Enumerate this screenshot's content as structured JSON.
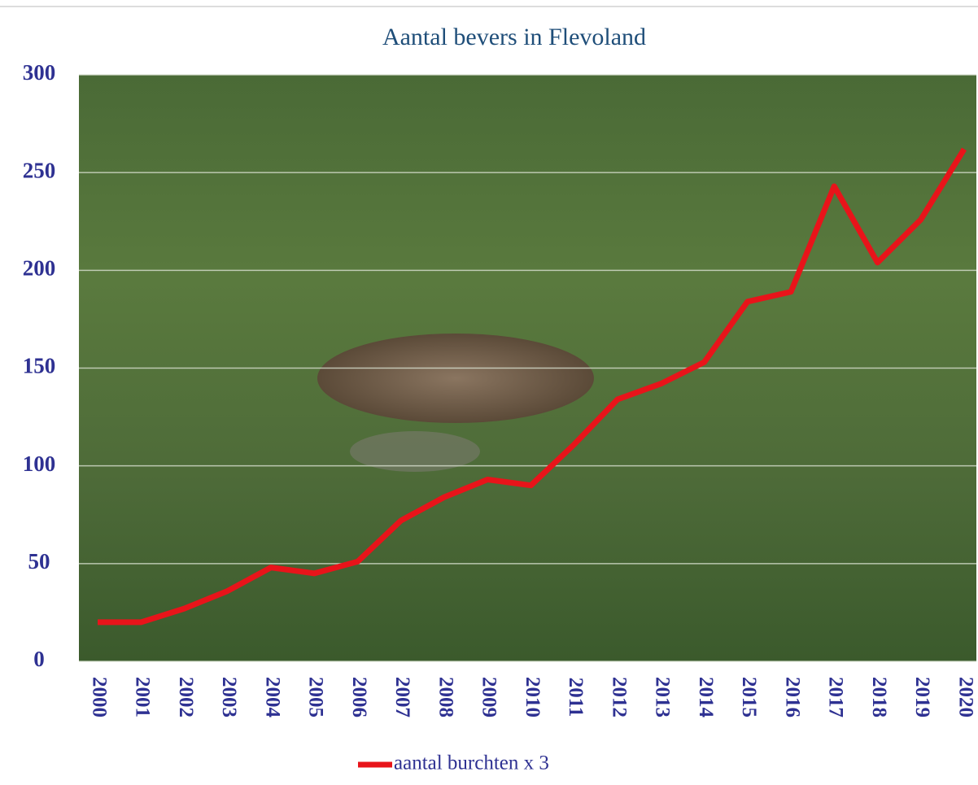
{
  "chart_data": {
    "type": "line",
    "title": "Aantal bevers in Flevoland",
    "categories": [
      "2000",
      "2001",
      "2002",
      "2003",
      "2004",
      "2005",
      "2006",
      "2007",
      "2008",
      "2009",
      "2010",
      "2011",
      "2012",
      "2013",
      "2014",
      "2015",
      "2016",
      "2017",
      "2018",
      "2019",
      "2020"
    ],
    "series": [
      {
        "name": "aantal burchten x 3",
        "color": "#e8141a",
        "values": [
          20,
          20,
          27,
          36,
          48,
          45,
          51,
          72,
          84,
          93,
          90,
          111,
          134,
          142,
          153,
          184,
          189,
          243,
          204,
          226,
          262
        ]
      }
    ],
    "ylim": [
      0,
      300
    ],
    "yticks": [
      0,
      50,
      100,
      150,
      200,
      250,
      300
    ],
    "grid": true
  }
}
